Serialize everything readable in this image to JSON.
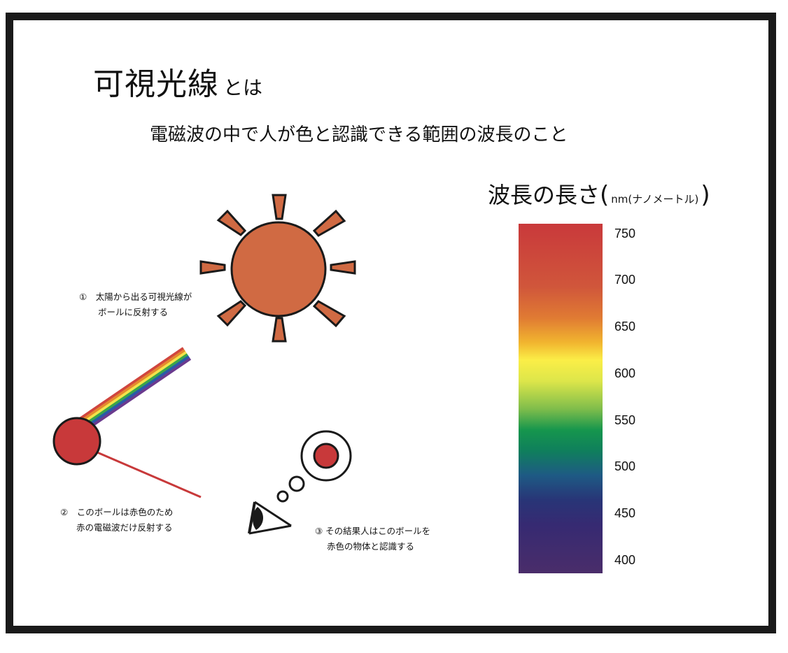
{
  "title": {
    "main": "可視光線",
    "suffix": "とは"
  },
  "subtitle": "電磁波の中で人が色と認識できる範囲の波長のこと",
  "legend": {
    "title": "波長の長さ",
    "paren_open": "(",
    "unit": "nm(ナノメートル)",
    "paren_close": ")",
    "ticks": [
      "750",
      "700",
      "650",
      "600",
      "550",
      "500",
      "450",
      "400"
    ]
  },
  "captions": {
    "step1": {
      "line1": "①　太陽から出る可視光線が",
      "line2": "ボールに反射する"
    },
    "step2": {
      "line1": "②　このボールは赤色のため",
      "line2": "赤の電磁波だけ反射する"
    },
    "step3": {
      "line1": "③ その結果人はこのボールを",
      "line2": "赤色の物体と認識する"
    }
  },
  "colors": {
    "sun": "#d06a43",
    "ball": "#c8393a",
    "reflected_ray": "#c8393a",
    "outline": "#1a1a1a",
    "rainbow": [
      "#d0463e",
      "#e5892f",
      "#f3e34a",
      "#3aa54a",
      "#2a5aa8",
      "#6a3a8e"
    ]
  },
  "icons": [
    "sun-icon",
    "eye-icon",
    "thought-bubble-icon",
    "ball-icon"
  ]
}
